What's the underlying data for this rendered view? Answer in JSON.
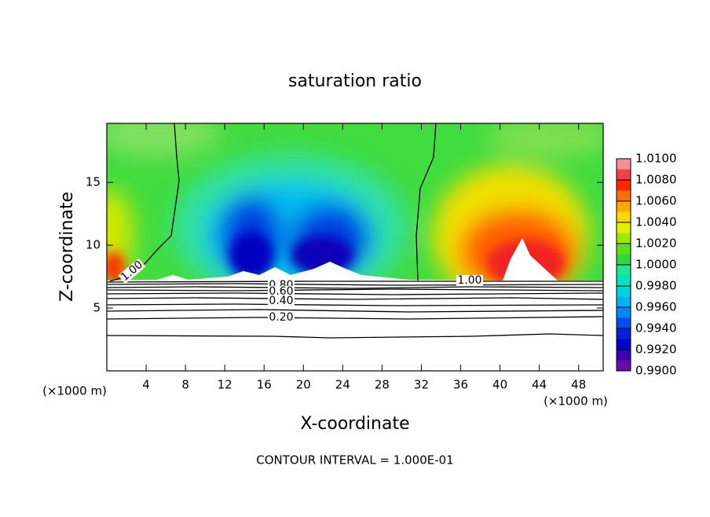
{
  "chart_data": {
    "type": "contour",
    "title": "saturation ratio",
    "x_label": "X-coordinate",
    "y_label": "Z-coordinate",
    "x_unit_left": "(×1000 m)",
    "x_unit_right": "(×1000 m)",
    "footer": "CONTOUR INTERVAL = 1.000E-01",
    "xlim": [
      0,
      50.5
    ],
    "ylim": [
      0,
      19.7
    ],
    "xticks": [
      4,
      8,
      12,
      16,
      20,
      24,
      28,
      32,
      36,
      40,
      44,
      48
    ],
    "yticks": [
      5,
      10,
      15
    ],
    "colorbar": {
      "lim": [
        0.99,
        1.01
      ],
      "ticks": [
        {
          "value": 0.99,
          "label": "0.9900"
        },
        {
          "value": 0.992,
          "label": "0.9920"
        },
        {
          "value": 0.994,
          "label": "0.9940"
        },
        {
          "value": 0.996,
          "label": "0.9960"
        },
        {
          "value": 0.998,
          "label": "0.9980"
        },
        {
          "value": 1.0,
          "label": "1.0000"
        },
        {
          "value": 1.002,
          "label": "1.0020"
        },
        {
          "value": 1.004,
          "label": "1.0040"
        },
        {
          "value": 1.006,
          "label": "1.0060"
        },
        {
          "value": 1.008,
          "label": "1.0080"
        },
        {
          "value": 1.01,
          "label": "1.0100"
        }
      ],
      "colors": [
        "#6a0aa8",
        "#3c00b4",
        "#0000c8",
        "#0020dc",
        "#0050f0",
        "#0088f8",
        "#00b4f4",
        "#00d4dc",
        "#00e4b8",
        "#20e890",
        "#30d840",
        "#60dc20",
        "#a0e800",
        "#e0f000",
        "#ffd800",
        "#ffa800",
        "#ff7000",
        "#ff2800",
        "#f0404a",
        "#f49090"
      ]
    },
    "contour_labels": [
      {
        "text": "1.00",
        "value": 1.0
      },
      {
        "text": "1.00",
        "value": 1.0
      },
      {
        "text": "0.80",
        "value": 0.8
      },
      {
        "text": "0.60",
        "value": 0.6
      },
      {
        "text": "0.40",
        "value": 0.4
      },
      {
        "text": "0.20",
        "value": 0.2
      }
    ]
  }
}
